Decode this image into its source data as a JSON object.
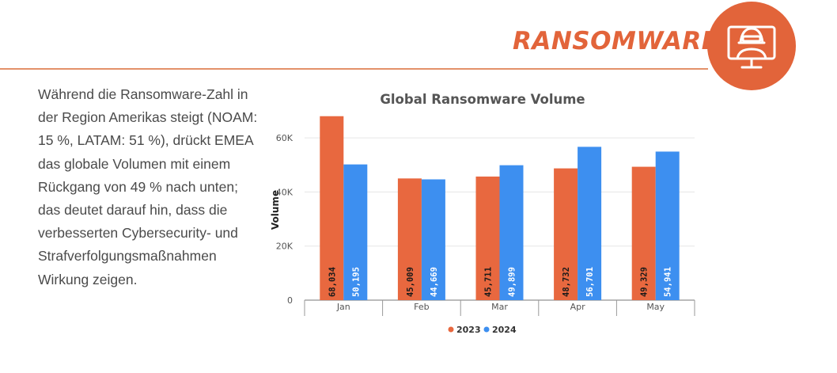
{
  "header": {
    "title": "RANSOMWARE",
    "accent_color": "#e2643a",
    "icon": "hacker-monitor-icon"
  },
  "body_text": "Während die Ransomware-Zahl in der Region Amerikas steigt (NOAM: 15 %, LATAM: 51 %), drückt EMEA das globale Volumen mit einem Rückgang von 49 % nach unten; das deutet darauf hin, dass die verbesserten Cybersecurity- und Strafverfolgungsmaßnahmen Wirkung zeigen.",
  "chart_data": {
    "type": "bar",
    "title": "Global Ransomware Volume",
    "xlabel": "",
    "ylabel": "Volume",
    "categories": [
      "Jan",
      "Feb",
      "Mar",
      "Apr",
      "May"
    ],
    "series": [
      {
        "name": "2023",
        "color": "#e8683f",
        "values": [
          68034,
          45009,
          45711,
          48732,
          49329
        ],
        "labels": [
          "68,034",
          "45,009",
          "45,711",
          "48,732",
          "49,329"
        ]
      },
      {
        "name": "2024",
        "color": "#3d8ff0",
        "values": [
          50195,
          44669,
          49899,
          56701,
          54941
        ],
        "labels": [
          "50,195",
          "44,669",
          "49,899",
          "56,701",
          "54,941"
        ]
      }
    ],
    "ylim": [
      0,
      70000
    ],
    "yticks": [
      0,
      20000,
      40000,
      60000
    ],
    "ytick_labels": [
      "0",
      "20K",
      "40K",
      "60K"
    ],
    "grid": true,
    "legend_position": "bottom"
  }
}
